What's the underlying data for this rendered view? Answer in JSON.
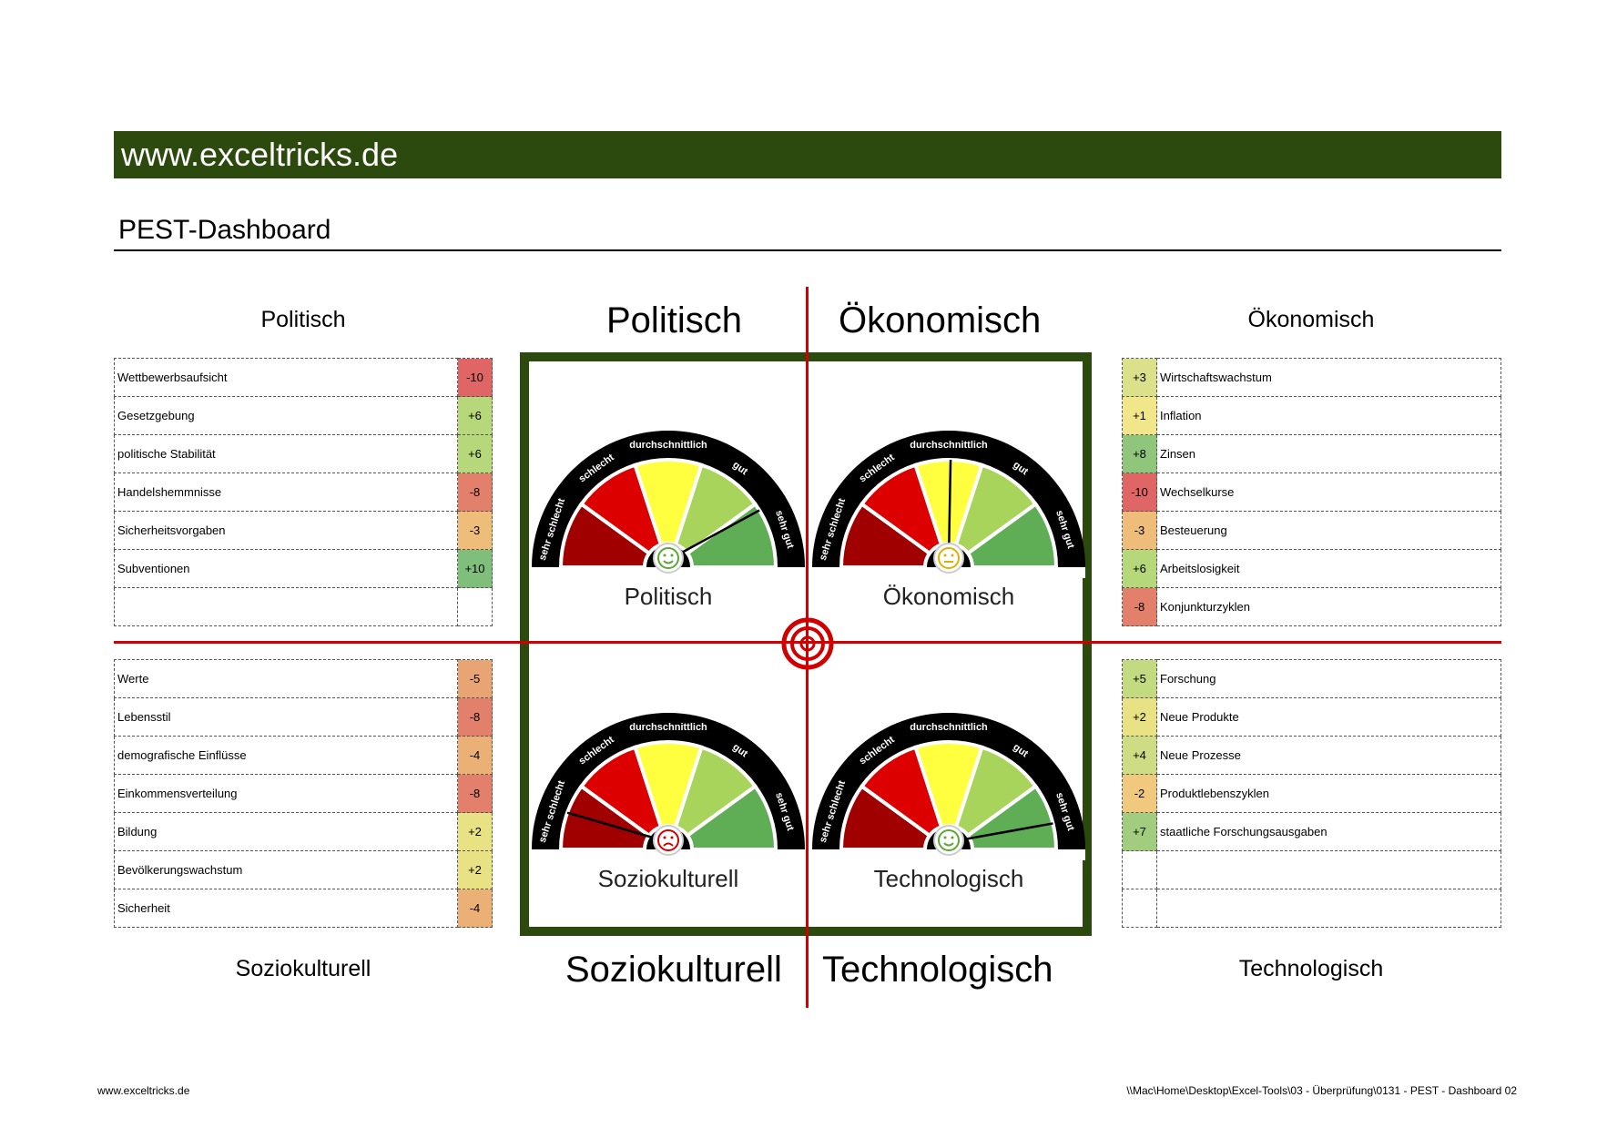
{
  "header": {
    "banner": "www.exceltricks.de",
    "title": "PEST-Dashboard"
  },
  "colors": {
    "banner_bg": "#2c4a0e",
    "frame": "#2c4a0e",
    "crosshair": "#d10000"
  },
  "quadrant_headings": {
    "politisch": "Politisch",
    "oekonomisch": "Ökonomisch",
    "soziokulturell": "Soziokulturell",
    "technologisch": "Technologisch"
  },
  "tables": {
    "politisch": {
      "title": "Politisch",
      "rows": [
        {
          "label": "Wettbewerbsaufsicht",
          "value": "-10",
          "color": "#e06666"
        },
        {
          "label": "Gesetzgebung",
          "value": "+6",
          "color": "#b6d77a"
        },
        {
          "label": "politische Stabilität",
          "value": "+6",
          "color": "#b6d77a"
        },
        {
          "label": "Handelshemmnisse",
          "value": "-8",
          "color": "#e3806b"
        },
        {
          "label": "Sicherheitsvorgaben",
          "value": "-3",
          "color": "#eebd7a"
        },
        {
          "label": "Subventionen",
          "value": "+10",
          "color": "#7fbf7b"
        },
        {
          "label": "",
          "value": "",
          "color": "#ffffff"
        }
      ]
    },
    "oekonomisch": {
      "title": "Ökonomisch",
      "rows": [
        {
          "label": "Wirtschaftswachstum",
          "value": "+3",
          "color": "#dbe08a"
        },
        {
          "label": "Inflation",
          "value": "+1",
          "color": "#f2e68a"
        },
        {
          "label": "Zinsen",
          "value": "+8",
          "color": "#90c57c"
        },
        {
          "label": "Wechselkurse",
          "value": "-10",
          "color": "#e06666"
        },
        {
          "label": "Besteuerung",
          "value": "-3",
          "color": "#eebd7a"
        },
        {
          "label": "Arbeitslosigkeit",
          "value": "+6",
          "color": "#b6d77a"
        },
        {
          "label": "Konjunkturzyklen",
          "value": "-8",
          "color": "#e3806b"
        }
      ]
    },
    "soziokulturell": {
      "title": "Soziokulturell",
      "rows": [
        {
          "label": "Werte",
          "value": "-5",
          "color": "#e8a472"
        },
        {
          "label": "Lebensstil",
          "value": "-8",
          "color": "#e3806b"
        },
        {
          "label": "demografische Einflüsse",
          "value": "-4",
          "color": "#ebb076"
        },
        {
          "label": "Einkommensverteilung",
          "value": "-8",
          "color": "#e3806b"
        },
        {
          "label": "Bildung",
          "value": "+2",
          "color": "#e8e284"
        },
        {
          "label": "Bevölkerungswachstum",
          "value": "+2",
          "color": "#e8e284"
        },
        {
          "label": "Sicherheit",
          "value": "-4",
          "color": "#ebb076"
        }
      ]
    },
    "technologisch": {
      "title": "Technologisch",
      "rows": [
        {
          "label": "Forschung",
          "value": "+5",
          "color": "#c3da80"
        },
        {
          "label": "Neue Produkte",
          "value": "+2",
          "color": "#e8e284"
        },
        {
          "label": "Neue  Prozesse",
          "value": "+4",
          "color": "#cedd84"
        },
        {
          "label": "Produktlebenszyklen",
          "value": "-2",
          "color": "#f0c97e"
        },
        {
          "label": "staatliche Forschungsausgaben",
          "value": "+7",
          "color": "#a3cd7e"
        },
        {
          "label": "",
          "value": "",
          "color": "#ffffff"
        },
        {
          "label": "",
          "value": "",
          "color": "#ffffff"
        }
      ]
    }
  },
  "gauge_scale": [
    "sehr schlecht",
    "schlecht",
    "durchschnittlich",
    "gut",
    "sehr gut"
  ],
  "gauges": {
    "politisch": {
      "label": "Politisch",
      "needle_deg": 58,
      "mood": "happy"
    },
    "oekonomisch": {
      "label": "Ökonomisch",
      "needle_deg": 1,
      "mood": "neutral"
    },
    "soziokulturell": {
      "label": "Soziokulturell",
      "needle_deg": -70,
      "mood": "sad"
    },
    "technologisch": {
      "label": "Technologisch",
      "needle_deg": 76,
      "mood": "happy"
    }
  },
  "footer": {
    "left": "www.exceltricks.de",
    "right": "\\\\Mac\\Home\\Desktop\\Excel-Tools\\03 - Überprüfung\\0131 - PEST - Dashboard 02"
  }
}
